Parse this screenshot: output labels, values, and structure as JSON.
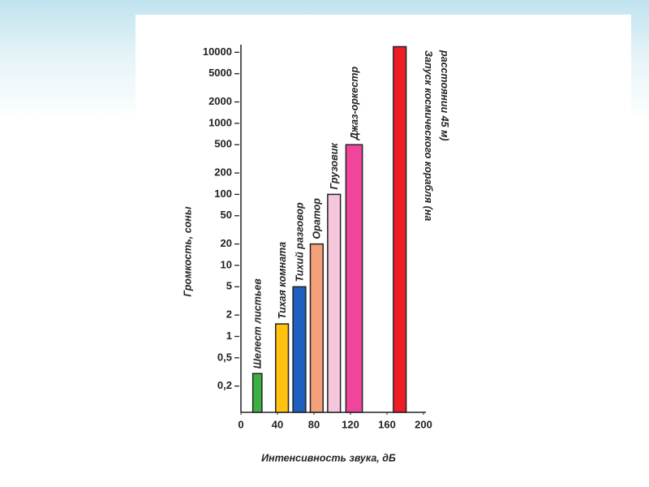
{
  "chart_data": {
    "type": "bar",
    "x_label": "Интенсивность звука, дБ",
    "y_label": "Громкость, соны",
    "categories": [
      "Шелест листьев",
      "Тихая комната",
      "Тихий разговор",
      "Оратор",
      "Грузовик",
      "Джаз-оркестр",
      "Запуск космического корабля (на расстоянии 45 м)"
    ],
    "x_start": [
      13,
      38,
      57,
      76,
      95,
      115,
      167
    ],
    "x_end": [
      23,
      52,
      71,
      90,
      109,
      133,
      181
    ],
    "values": [
      0.3,
      1.5,
      5,
      20,
      100,
      500,
      12000
    ],
    "colors": [
      "#3cb043",
      "#ffc20e",
      "#1f5fbf",
      "#f4a07a",
      "#f5c6dc",
      "#f0459b",
      "#ee1c25"
    ],
    "xlim": [
      0,
      200
    ],
    "xticks": [
      0,
      40,
      80,
      120,
      160,
      200
    ],
    "ylim": [
      0.1,
      15000
    ],
    "log_y": true,
    "yticks": [
      {
        "value": 0.2,
        "label": "0,2"
      },
      {
        "value": 0.5,
        "label": "0,5"
      },
      1,
      2,
      5,
      10,
      20,
      50,
      100,
      200,
      500,
      1000,
      2000,
      5000,
      10000
    ]
  }
}
